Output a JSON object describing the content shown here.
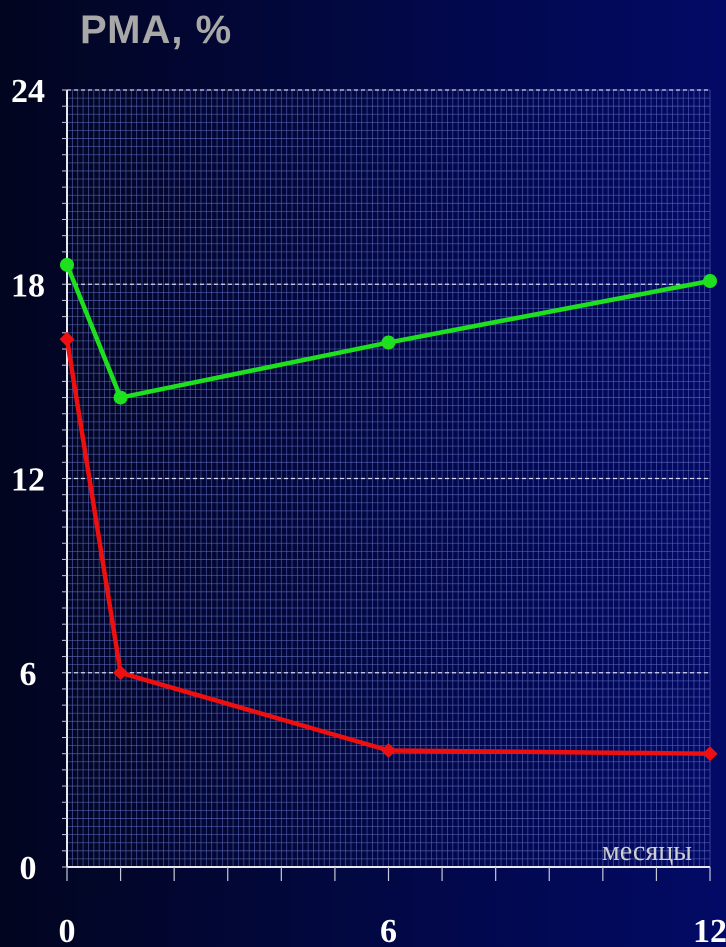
{
  "chart_data": {
    "type": "line",
    "title": "РМА, %",
    "xlabel": "месяцы",
    "ylabel": "",
    "xlim": [
      0,
      12
    ],
    "ylim": [
      0,
      24
    ],
    "x_ticks": [
      0,
      6,
      12
    ],
    "y_ticks": [
      0,
      6,
      12,
      18,
      24
    ],
    "grid": true,
    "series": [
      {
        "color": "#1ee01e",
        "marker": "circle",
        "x": [
          0,
          1,
          6,
          12
        ],
        "y": [
          18.6,
          14.5,
          16.2,
          18.1
        ]
      },
      {
        "color": "#ee1010",
        "marker": "diamond",
        "x": [
          0,
          1,
          6,
          12
        ],
        "y": [
          16.3,
          6.0,
          3.6,
          3.5
        ]
      }
    ]
  }
}
